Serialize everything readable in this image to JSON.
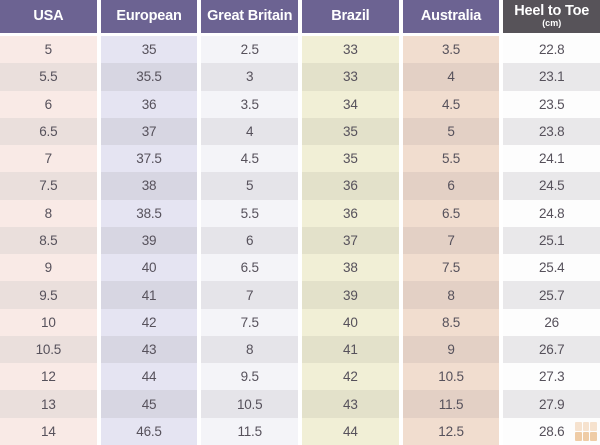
{
  "page": {
    "background": "#ffffff"
  },
  "chart_data": {
    "type": "table",
    "header_text_color": "#ffffff",
    "cell_text_color": "#56515b",
    "columns": [
      {
        "label": "USA",
        "sublabel": "",
        "header_bg": "#6c6392",
        "light": "#f9eae6",
        "dark": "#eadfdc",
        "values": [
          "5",
          "5.5",
          "6",
          "6.5",
          "7",
          "7.5",
          "8",
          "8.5",
          "9",
          "9.5",
          "10",
          "10.5",
          "12",
          "13",
          "14"
        ]
      },
      {
        "label": "European",
        "sublabel": "",
        "header_bg": "#6c6392",
        "light": "#e5e4f2",
        "dark": "#d7d6e2",
        "values": [
          "35",
          "35.5",
          "36",
          "37",
          "37.5",
          "38",
          "38.5",
          "39",
          "40",
          "41",
          "42",
          "43",
          "44",
          "45",
          "46.5"
        ]
      },
      {
        "label": "Great Britain",
        "sublabel": "",
        "header_bg": "#6c6392",
        "light": "#f4f4f8",
        "dark": "#e5e4e9",
        "values": [
          "2.5",
          "3",
          "3.5",
          "4",
          "4.5",
          "5",
          "5.5",
          "6",
          "6.5",
          "7",
          "7.5",
          "8",
          "9.5",
          "10.5",
          "11.5"
        ]
      },
      {
        "label": "Brazil",
        "sublabel": "",
        "header_bg": "#6c6392",
        "light": "#f1efd6",
        "dark": "#e3e1ca",
        "values": [
          "33",
          "33",
          "34",
          "35",
          "35",
          "36",
          "36",
          "37",
          "38",
          "39",
          "40",
          "41",
          "42",
          "43",
          "44"
        ]
      },
      {
        "label": "Australia",
        "sublabel": "",
        "header_bg": "#6c6392",
        "light": "#f1ddcf",
        "dark": "#e3d0c5",
        "values": [
          "3.5",
          "4",
          "4.5",
          "5",
          "5.5",
          "6",
          "6.5",
          "7",
          "7.5",
          "8",
          "8.5",
          "9",
          "10.5",
          "11.5",
          "12.5"
        ]
      },
      {
        "label": "Heel to Toe",
        "sublabel": "(cm)",
        "header_bg": "#575359",
        "light": "#fdfdfd",
        "dark": "#e9e8ea",
        "values": [
          "22.8",
          "23.1",
          "23.5",
          "23.8",
          "24.1",
          "24.5",
          "24.8",
          "25.1",
          "25.4",
          "25.7",
          "26",
          "26.7",
          "27.3",
          "27.9",
          "28.6"
        ]
      }
    ]
  },
  "watermark": {
    "color": "#e0913f"
  }
}
